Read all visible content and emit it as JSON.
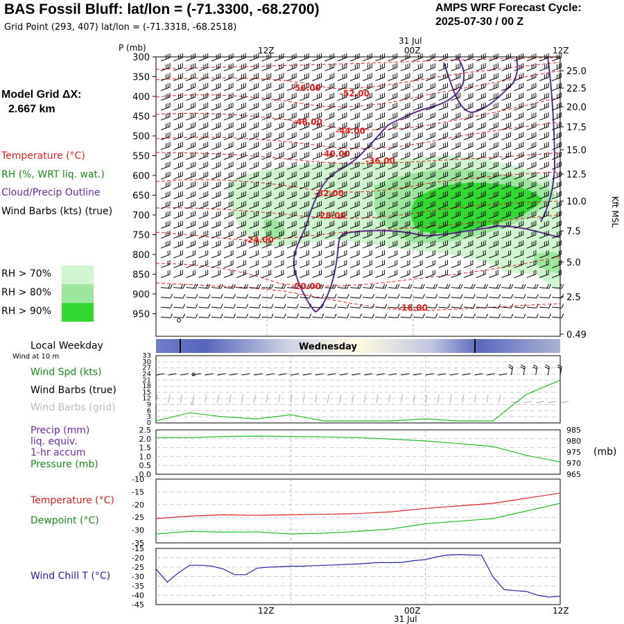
{
  "header": {
    "title": "BAS Fossil Bluff:  lat/lon = (-71.3300, -68.2700)",
    "subtitle": "Grid Point (293, 407) lat/lon = (-71.3318, -68.2518)",
    "cycle_line1": "AMPS WRF Forecast Cycle:",
    "cycle_line2": "2025-07-30 / 00  Z"
  },
  "model_grid": {
    "line1": "Model Grid ΔX:",
    "line2": "2.667 km"
  },
  "legend": {
    "temperature": "Temperature (°C)",
    "rh": "RH (%, WRT liq. wat.)",
    "cloud": "Cloud/Precip Outline",
    "wind": "Wind Barbs (kts) (true)",
    "rh70": "RH > 70%",
    "rh80": "RH > 80%",
    "rh90": "RH > 90%",
    "rh70_color": "#cff5cf",
    "rh80_color": "#9be79b",
    "rh90_color": "#33d933"
  },
  "time_axis": {
    "top_date": "31 Jul",
    "bottom_date": "31 Jul",
    "ticks": [
      "12Z",
      "00Z",
      "12Z"
    ]
  },
  "weekday": {
    "label": "Local Weekday",
    "sublabel": "Wind at 10 m",
    "day": "Wednesday"
  },
  "panel_labels": {
    "wind_spd": "Wind Spd (kts)",
    "wind_barbs_true": "Wind Barbs (true)",
    "wind_barbs_grid": "Wind Barbs (grid)",
    "precip1": "Precip (mm)",
    "precip2": "liq. equiv.",
    "precip3": "1-hr accum",
    "pressure": "Pressure (mb)",
    "pressure_unit": "(mb)",
    "temperature": "Temperature (°C)",
    "dewpoint": "Dewpoint (°C)",
    "windchill": "Wind Chill T (°C)"
  },
  "chart_data": [
    {
      "type": "heatmap",
      "ylabel": "P (mb)",
      "y2label": "Kft MSL",
      "p_ticks": [
        "300",
        "350",
        "400",
        "450",
        "500",
        "550",
        "600",
        "650",
        "700",
        "750",
        "800",
        "850",
        "900",
        "950"
      ],
      "kft_ticks": [
        "25.0",
        "22.5",
        "20.0",
        "17.5",
        "15.0",
        "12.5",
        "10.0",
        "7.5",
        "5.0",
        "2.5",
        "0.49"
      ],
      "temperature_contour_labels": [
        "-56.00",
        "-52.00",
        "-48.00",
        "-44.00",
        "-40.00",
        "-36.00",
        "-32.00",
        "-28.00",
        "-24.00",
        "-20.00",
        "-16.00"
      ]
    },
    {
      "type": "line",
      "title": "Wind Spd (kts)",
      "y_ticks": [
        "33",
        "30",
        "27",
        "24",
        "21",
        "18",
        "15",
        "12",
        "9",
        "6",
        "3",
        "0"
      ],
      "ylim": [
        0,
        33
      ],
      "hours": [
        0,
        3,
        6,
        9,
        12,
        15,
        18,
        21,
        24,
        27,
        30,
        33,
        36
      ],
      "values": [
        1,
        5,
        3,
        2,
        4,
        1,
        1,
        1,
        2,
        1,
        1,
        14,
        21
      ]
    },
    {
      "type": "line",
      "title": "Pressure (mb)",
      "y_ticks": [
        "2.5",
        "2.0",
        "1.5",
        "1.0",
        "0.5",
        "0.0"
      ],
      "y2_ticks": [
        "985",
        "980",
        "975",
        "970",
        "965"
      ],
      "ylim": [
        0.0,
        2.5
      ],
      "y2lim": [
        965,
        985
      ],
      "hours": [
        0,
        3,
        6,
        9,
        12,
        15,
        18,
        21,
        24,
        27,
        30,
        33,
        36
      ],
      "pressure": [
        981.5,
        981.5,
        982.0,
        982.2,
        982.0,
        981.8,
        981.5,
        980.8,
        980.0,
        978.8,
        977.5,
        973.5,
        970.5
      ],
      "precip": [
        0,
        0,
        0,
        0,
        0,
        0,
        0,
        0,
        0,
        0,
        0,
        0,
        0
      ]
    },
    {
      "type": "line",
      "title": "Temperature (°C) / Dewpoint (°C)",
      "y_ticks": [
        "-10",
        "-15",
        "-20",
        "-25",
        "-30",
        "-35"
      ],
      "ylim": [
        -35,
        -10
      ],
      "hours": [
        0,
        3,
        6,
        9,
        12,
        15,
        18,
        21,
        24,
        27,
        30,
        33,
        36
      ],
      "series": [
        {
          "name": "Temperature (°C)",
          "values": [
            -25.5,
            -24.5,
            -24.0,
            -24.2,
            -24.0,
            -23.8,
            -23.5,
            -22.8,
            -21.5,
            -20.5,
            -19.5,
            -17.5,
            -15.5
          ]
        },
        {
          "name": "Dewpoint (°C)",
          "values": [
            -31.5,
            -30.5,
            -30.8,
            -30.7,
            -31.5,
            -31.2,
            -30.5,
            -29.5,
            -27.5,
            -26.5,
            -25.5,
            -22.5,
            -19.5
          ]
        }
      ]
    },
    {
      "type": "line",
      "title": "Wind Chill T (°C)",
      "y_ticks": [
        "-15",
        "-20",
        "-25",
        "-30",
        "-35",
        "-40",
        "-45"
      ],
      "ylim": [
        -45,
        -15
      ],
      "hours": [
        0,
        1,
        2,
        3,
        4,
        5,
        6,
        7,
        8,
        9,
        10,
        11,
        12,
        13,
        14,
        15,
        16,
        17,
        18,
        19,
        20,
        21,
        22,
        23,
        24,
        25,
        26,
        27,
        28,
        29,
        30,
        31,
        32,
        33,
        34,
        35,
        36
      ],
      "values": [
        -26,
        -33,
        -28,
        -24,
        -24,
        -24.5,
        -26,
        -29,
        -29,
        -25.5,
        -25,
        -24.8,
        -24.5,
        -24.5,
        -24.2,
        -24,
        -23.8,
        -23.5,
        -23.3,
        -22.8,
        -22.5,
        -22.6,
        -22.4,
        -21.5,
        -21,
        -19.5,
        -18.5,
        -18.3,
        -18.5,
        -18.7,
        -30,
        -37,
        -37.5,
        -38,
        -40,
        -41,
        -40.5
      ]
    }
  ]
}
